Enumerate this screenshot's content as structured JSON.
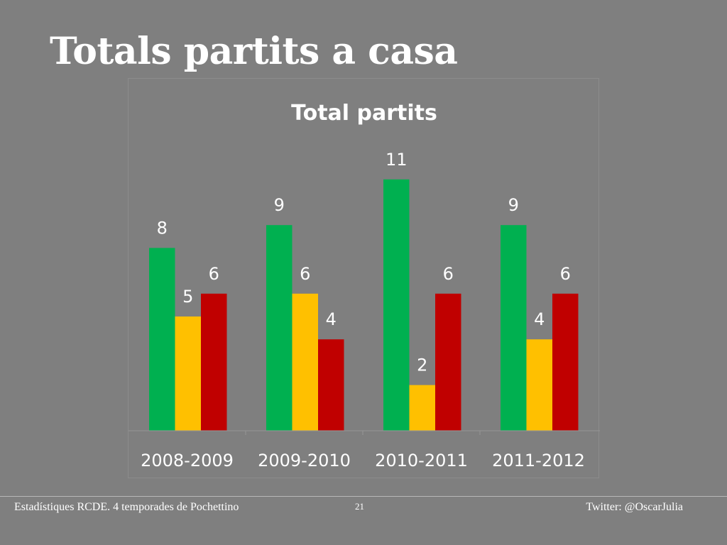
{
  "slide": {
    "title": "Totals partits a casa",
    "footer_left": "Estadístiques RCDE. 4 temporades de Pochettino",
    "page_number": "21",
    "footer_right": "Twitter: @OscarJulia"
  },
  "chart_data": {
    "type": "bar",
    "title": "Total partits",
    "categories": [
      "2008-2009",
      "2009-2010",
      "2010-2011",
      "2011-2012"
    ],
    "series": [
      {
        "values": [
          8,
          9,
          11,
          9
        ],
        "color": "#00b050"
      },
      {
        "values": [
          5,
          6,
          2,
          4
        ],
        "color": "#ffc000"
      },
      {
        "values": [
          6,
          4,
          6,
          6
        ],
        "color": "#c00000"
      }
    ],
    "ylim": [
      0,
      12
    ],
    "data_labels": true,
    "grid": false,
    "legend": "none"
  }
}
